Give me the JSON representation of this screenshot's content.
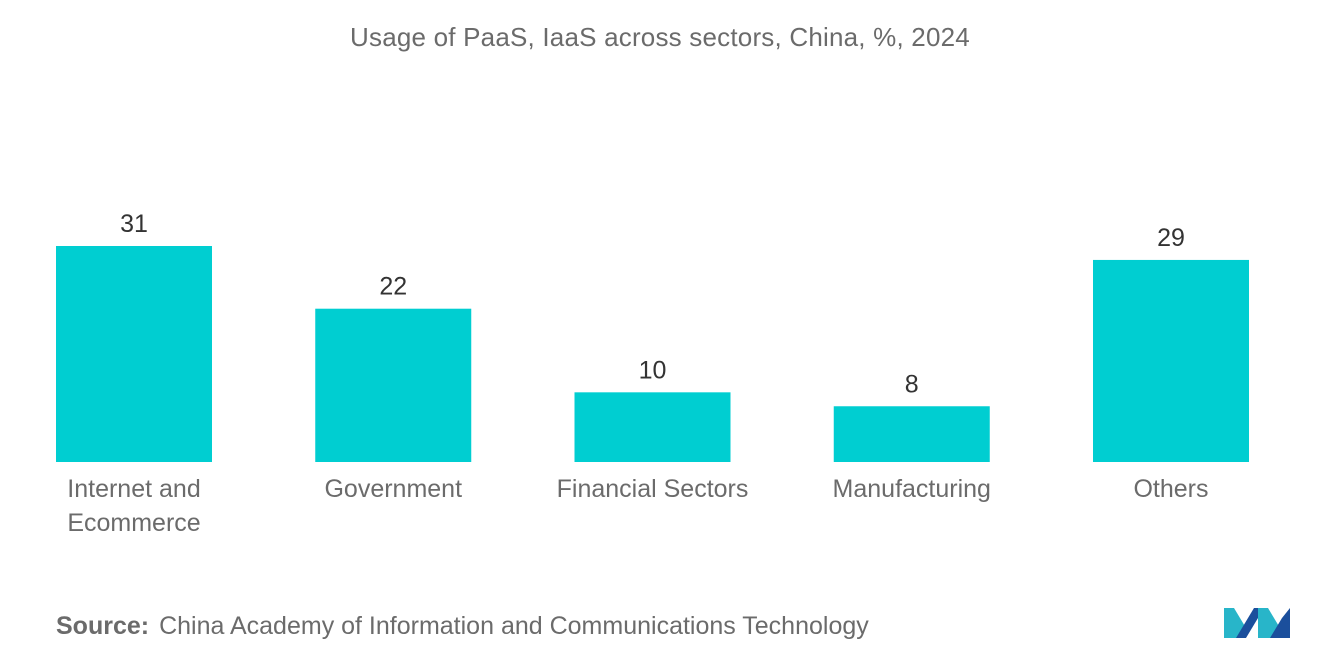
{
  "chart_data": {
    "type": "bar",
    "title": "Usage of PaaS, IaaS across sectors, China, %, 2024",
    "categories": [
      "Internet and\nEcommerce",
      "Government",
      "Financial Sectors",
      "Manufacturing",
      "Others"
    ],
    "values": [
      31,
      22,
      10,
      8,
      29
    ],
    "xlabel": "",
    "ylabel": "",
    "ylim": [
      0,
      31
    ],
    "grid": false,
    "legend": "none"
  },
  "colors": {
    "bar": "#00ced1",
    "text": "#6b6b6b",
    "label": "#333333",
    "logo_dark": "#1b4f9c",
    "logo_light": "#28b5c9"
  },
  "source": {
    "label": "Source:",
    "text": "China Academy of Information and Communications Technology"
  },
  "logo": {
    "icon": "brand-logo-icon"
  }
}
